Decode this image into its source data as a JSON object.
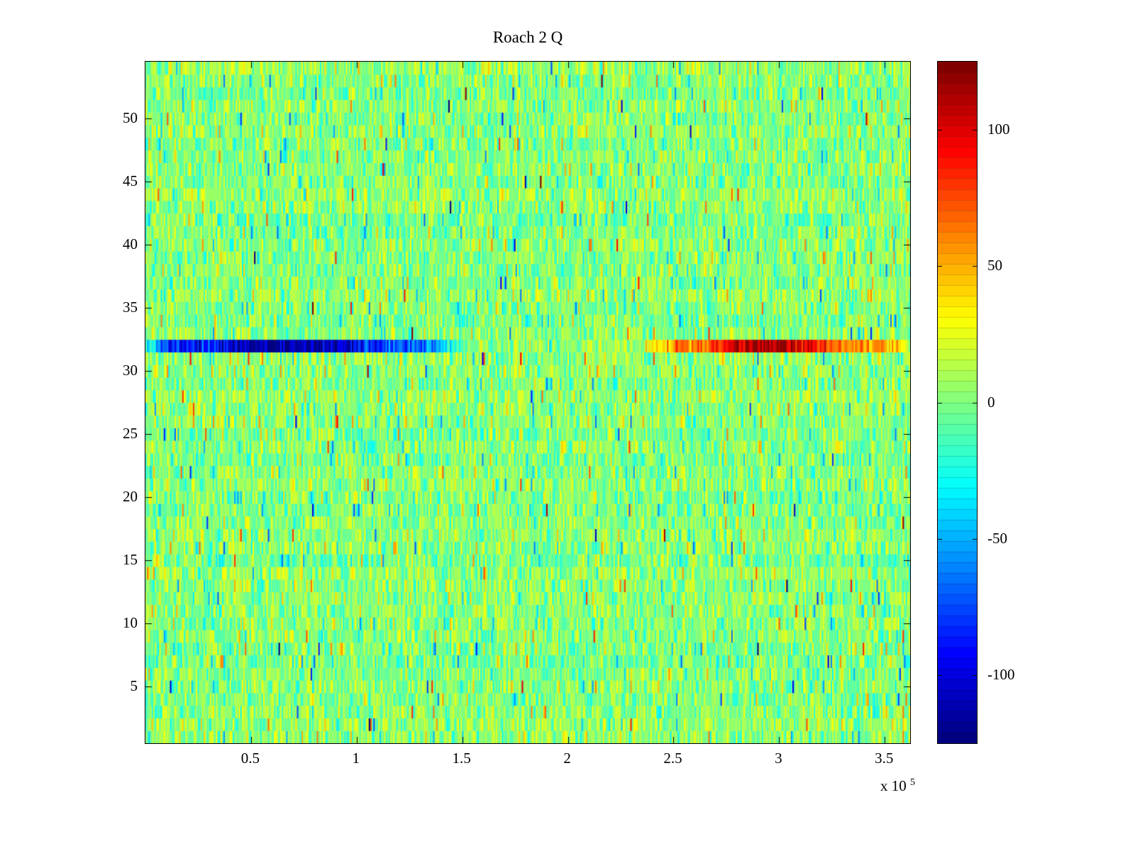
{
  "figure": {
    "title": "Roach 2 Q",
    "x_scale_prefix": "x 10",
    "x_scale_exponent": "5"
  },
  "chart_data": {
    "type": "heatmap",
    "title": "Roach 2 Q",
    "xlabel": "",
    "ylabel": "",
    "x_range": [
      0,
      362000
    ],
    "x_ticks": [
      50000,
      100000,
      150000,
      200000,
      250000,
      300000,
      350000
    ],
    "x_tick_labels": [
      "0.5",
      "1",
      "1.5",
      "2",
      "2.5",
      "3",
      "3.5"
    ],
    "x_scale_label": "x 10^5",
    "y_range": [
      0.5,
      54.5
    ],
    "y_ticks": [
      5,
      10,
      15,
      20,
      25,
      30,
      35,
      40,
      45,
      50
    ],
    "y_tick_labels": [
      "5",
      "10",
      "15",
      "20",
      "25",
      "30",
      "35",
      "40",
      "45",
      "50"
    ],
    "rows": 54,
    "cols": 500,
    "colormap": "jet",
    "clim": [
      -125,
      125
    ],
    "grid": false,
    "colorbar": {
      "position": "right",
      "ticks": [
        100,
        50,
        0,
        -50,
        -100
      ],
      "tick_labels": [
        "100",
        "50",
        "0",
        "-50",
        "-100"
      ],
      "steps": 64
    },
    "background_noise": {
      "seed": 20470,
      "cell_mean": 2,
      "cell_std": 15,
      "row_offset_std": 2.5,
      "outlier_prob": 0.08,
      "outlier_std": 30,
      "extreme_prob": 0.004,
      "extreme_std": 75
    },
    "anomaly_row": {
      "row": 32,
      "description": "single row with strong negative (dark blue) band on the left and strong positive (dark red) band on the right",
      "segments": [
        {
          "x_start": -6000,
          "x_end": 152000,
          "base_value": -60,
          "peak_value": -118,
          "peak_x": 62000,
          "peak_width": 52000,
          "edge_fade": 18000,
          "jitter_std": 16
        },
        {
          "x_start": 230000,
          "x_end": 368000,
          "base_value": 52,
          "peak_value": 118,
          "peak_x": 296000,
          "peak_width": 26000,
          "edge_fade": 18000,
          "jitter_std": 14
        }
      ]
    }
  }
}
